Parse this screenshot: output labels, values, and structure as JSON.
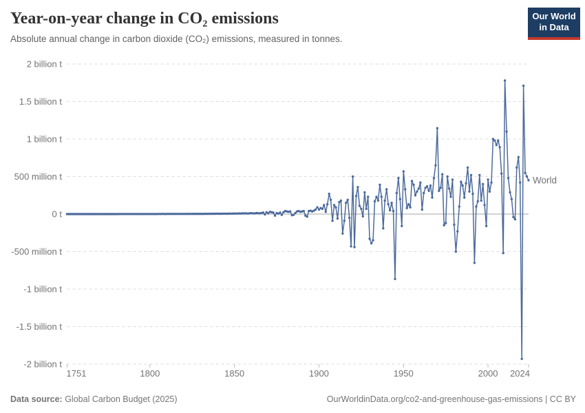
{
  "header": {
    "title": "Year-on-year change in CO₂ emissions",
    "subtitle": "Absolute annual change in carbon dioxide (CO₂) emissions, measured in tonnes."
  },
  "logo": {
    "line1": "Our World",
    "line2": "in Data"
  },
  "footer": {
    "source_label": "Data source:",
    "source_value": " Global Carbon Budget (2025)",
    "credit_link": "OurWorldinData.org/co2-and-greenhouse-gas-emissions",
    "credit_suffix": " | CC BY"
  },
  "colors": {
    "line": "#4C6A9C",
    "grid": "#DBDBDB",
    "zero_line": "#A6A6A6",
    "axis_text": "#737373",
    "tick_mark": "#BBBBBB",
    "title_text": "#333333",
    "subtitle_text": "#616161",
    "footer_text": "#757575",
    "logo_bg": "#1D3D63",
    "logo_red": "#C5392D"
  },
  "chart_data": {
    "type": "line",
    "title": "Year-on-year change in CO₂ emissions",
    "subtitle": "Absolute annual change in carbon dioxide (CO₂) emissions, measured in tonnes.",
    "unit": "tonnes of CO₂ per year (year-on-year change)",
    "values_unit": "million tonnes",
    "grid": "horizontal dashed gridlines, solid zero line",
    "legend": "end-of-line series label",
    "x_range": [
      1751,
      2024
    ],
    "x_ticks": [
      1751,
      1800,
      1850,
      1900,
      1950,
      2000,
      2024
    ],
    "ylim": [
      -2000,
      2000
    ],
    "y_ticks": [
      {
        "value": 2000,
        "label": "2 billion t"
      },
      {
        "value": 1500,
        "label": "1.5 billion t"
      },
      {
        "value": 1000,
        "label": "1 billion t"
      },
      {
        "value": 500,
        "label": "500 million t"
      },
      {
        "value": 0,
        "label": "0 t"
      },
      {
        "value": -500,
        "label": "-500 million t"
      },
      {
        "value": -1000,
        "label": "-1 billion t"
      },
      {
        "value": -1500,
        "label": "-1.5 billion t"
      },
      {
        "value": -2000,
        "label": "-2 billion t"
      }
    ],
    "series": [
      {
        "name": "World",
        "color": "#4C6A9C",
        "x_start": 1751,
        "x_step": 1,
        "values": [
          0,
          0.1,
          0.1,
          0.1,
          0.1,
          0.2,
          0.1,
          0.1,
          0.2,
          0.1,
          0.2,
          0.1,
          0.2,
          0.2,
          0.2,
          0.2,
          0.3,
          0.2,
          0.3,
          0.3,
          0.3,
          0.3,
          0.3,
          0.2,
          0.3,
          0.4,
          0.3,
          0.4,
          0.4,
          0.3,
          0.4,
          0.5,
          0.5,
          0.6,
          0.5,
          0.6,
          0.7,
          0.7,
          0.6,
          0.8,
          0.8,
          0.7,
          0.9,
          0.8,
          1.0,
          0.9,
          1.0,
          1.1,
          1.0,
          1.2,
          1.2,
          1.1,
          1.3,
          1.2,
          1.4,
          1.3,
          1.5,
          1.4,
          1.2,
          1.5,
          1.6,
          1.4,
          1.7,
          1.5,
          1.8,
          1.6,
          1.9,
          2.0,
          1.8,
          2.1,
          2.2,
          2.0,
          2.4,
          2.2,
          2.6,
          2.4,
          2.8,
          2.6,
          3.0,
          2.8,
          3.2,
          3.0,
          3.4,
          3.2,
          3.8,
          3.5,
          4.0,
          3.6,
          4.2,
          4.5,
          4.0,
          4.8,
          4.4,
          5.2,
          5.6,
          5.0,
          6.0,
          5.4,
          6.4,
          7.0,
          6,
          7.5,
          8,
          7,
          9,
          8,
          10,
          6,
          11,
          12,
          10,
          8,
          14,
          12,
          10,
          15,
          20,
          -5,
          25,
          10,
          30,
          25,
          20,
          -20,
          15,
          5,
          20,
          -10,
          25,
          40,
          35,
          30,
          35,
          -15,
          -10,
          15,
          35,
          40,
          30,
          35,
          40,
          -20,
          -35,
          40,
          45,
          35,
          45,
          60,
          90,
          60,
          80,
          70,
          120,
          30,
          130,
          270,
          190,
          -90,
          120,
          90,
          -60,
          160,
          180,
          -260,
          -90,
          150,
          190,
          -50,
          -430,
          500,
          -440,
          240,
          360,
          110,
          70,
          -30,
          290,
          70,
          230,
          -330,
          -390,
          -350,
          170,
          230,
          180,
          390,
          230,
          -190,
          180,
          330,
          130,
          50,
          150,
          40,
          -865,
          280,
          480,
          200,
          -160,
          570,
          330,
          80,
          130,
          90,
          440,
          390,
          250,
          300,
          340,
          420,
          60,
          280,
          350,
          370,
          310,
          380,
          220,
          480,
          650,
          1145,
          310,
          350,
          530,
          -150,
          -120,
          500,
          340,
          230,
          460,
          -140,
          -500,
          -230,
          100,
          430,
          380,
          220,
          410,
          620,
          300,
          520,
          270,
          -650,
          100,
          170,
          520,
          180,
          400,
          120,
          -160,
          460,
          300,
          420,
          1000,
          980,
          920,
          980,
          890,
          540,
          -520,
          1780,
          1100,
          480,
          290,
          200,
          -40,
          -70,
          620,
          760,
          420,
          -1930,
          1710,
          550,
          500,
          450
        ]
      }
    ]
  }
}
